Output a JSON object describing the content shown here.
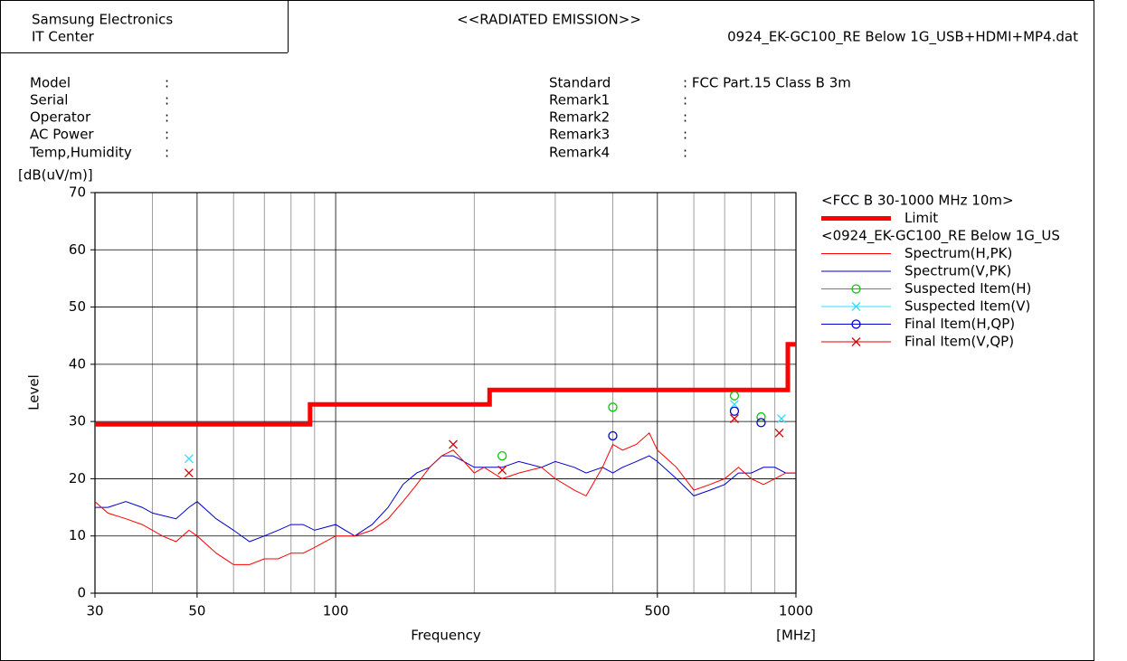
{
  "header": {
    "company": "Samsung Electronics",
    "department": "IT Center",
    "title": "<<RADIATED EMISSION>>",
    "file": "0924_EK-GC100_RE Below 1G_USB+HDMI+MP4.dat"
  },
  "info": {
    "left": [
      {
        "label": "Model",
        "value": ":"
      },
      {
        "label": "Serial",
        "value": ":"
      },
      {
        "label": "Operator",
        "value": ":"
      },
      {
        "label": "AC Power",
        "value": ":"
      },
      {
        "label": "Temp,Humidity",
        "value": ":"
      }
    ],
    "right": [
      {
        "label": "Standard",
        "value": ": FCC Part.15 Class B 3m"
      },
      {
        "label": "Remark1",
        "value": ":"
      },
      {
        "label": "Remark2",
        "value": ":"
      },
      {
        "label": "Remark3",
        "value": ":"
      },
      {
        "label": "Remark4",
        "value": ":"
      }
    ]
  },
  "chart_data": {
    "type": "line",
    "xlabel": "Frequency",
    "xunit": "[MHz]",
    "ylabel": "Level",
    "yunit": "[dB(uV/m)]",
    "xscale": "log",
    "xlim": [
      30,
      1000
    ],
    "xticks": [
      30,
      50,
      100,
      500,
      1000
    ],
    "xgrid_minor": [
      40,
      60,
      70,
      80,
      90,
      200,
      300,
      400,
      600,
      700,
      800,
      900
    ],
    "ylim": [
      0,
      70
    ],
    "yticks": [
      0,
      10,
      20,
      30,
      40,
      50,
      60,
      70
    ],
    "grid": true,
    "legend": "right",
    "legend_headings": [
      "<FCC B 30-1000 MHz 10m>",
      "<0924_EK-GC100_RE Below 1G_US"
    ],
    "series": [
      {
        "name": "Limit",
        "color": "#ff0000",
        "width": 5,
        "x": [
          30,
          88,
          88,
          216,
          216,
          960,
          960,
          1000
        ],
        "values": [
          29.5,
          29.5,
          33,
          33,
          35.5,
          35.5,
          43.5,
          43.5
        ]
      },
      {
        "name": "Spectrum(H,PK)",
        "color": "#ff0000",
        "width": 1,
        "x": [
          30,
          32,
          35,
          38,
          40,
          42,
          45,
          48,
          50,
          55,
          60,
          65,
          70,
          75,
          80,
          85,
          90,
          100,
          110,
          120,
          130,
          140,
          150,
          160,
          170,
          180,
          190,
          200,
          210,
          230,
          250,
          280,
          300,
          330,
          350,
          380,
          400,
          420,
          450,
          480,
          500,
          550,
          600,
          650,
          700,
          750,
          800,
          850,
          900,
          950,
          1000
        ],
        "values": [
          16,
          14,
          13,
          12,
          11,
          10,
          9,
          11,
          10,
          7,
          5,
          5,
          6,
          6,
          7,
          7,
          8,
          10,
          10,
          11,
          13,
          16,
          19,
          22,
          24,
          25,
          23,
          21,
          22,
          20,
          21,
          22,
          20,
          18,
          17,
          22,
          26,
          25,
          26,
          28,
          25,
          22,
          18,
          19,
          20,
          22,
          20,
          19,
          20,
          21,
          21
        ]
      },
      {
        "name": "Spectrum(V,PK)",
        "color": "#0000cc",
        "width": 1,
        "x": [
          30,
          32,
          35,
          38,
          40,
          45,
          48,
          50,
          55,
          60,
          65,
          70,
          75,
          80,
          85,
          90,
          100,
          110,
          120,
          130,
          140,
          150,
          160,
          170,
          180,
          190,
          200,
          210,
          230,
          250,
          280,
          300,
          330,
          350,
          380,
          400,
          420,
          450,
          480,
          500,
          550,
          600,
          650,
          700,
          750,
          800,
          850,
          900,
          950,
          1000
        ],
        "values": [
          15,
          15,
          16,
          15,
          14,
          13,
          15,
          16,
          13,
          11,
          9,
          10,
          11,
          12,
          12,
          11,
          12,
          10,
          12,
          15,
          19,
          21,
          22,
          24,
          24,
          23,
          22,
          22,
          22,
          23,
          22,
          23,
          22,
          21,
          22,
          21,
          22,
          23,
          24,
          23,
          20,
          17,
          18,
          19,
          21,
          21,
          22,
          22,
          21,
          21
        ]
      },
      {
        "name": "Suspected Item(H)",
        "color": "#00cc00",
        "marker": "o",
        "x": [
          230,
          400,
          735,
          840
        ],
        "values": [
          24,
          32.5,
          34.5,
          30.8
        ]
      },
      {
        "name": "Suspected Item(V)",
        "color": "#33ddff",
        "marker": "x",
        "x": [
          48,
          180,
          735,
          930
        ],
        "values": [
          23.5,
          26,
          33,
          30.5
        ]
      },
      {
        "name": "Final Item(H,QP)",
        "color": "#0000cc",
        "marker": "o",
        "x": [
          400,
          735,
          840
        ],
        "values": [
          27.5,
          31.8,
          29.8
        ]
      },
      {
        "name": "Final Item(V,QP)",
        "color": "#dd0000",
        "marker": "x",
        "x": [
          48,
          180,
          230,
          735,
          920
        ],
        "values": [
          21,
          26,
          21.5,
          30.5,
          28
        ]
      }
    ]
  }
}
